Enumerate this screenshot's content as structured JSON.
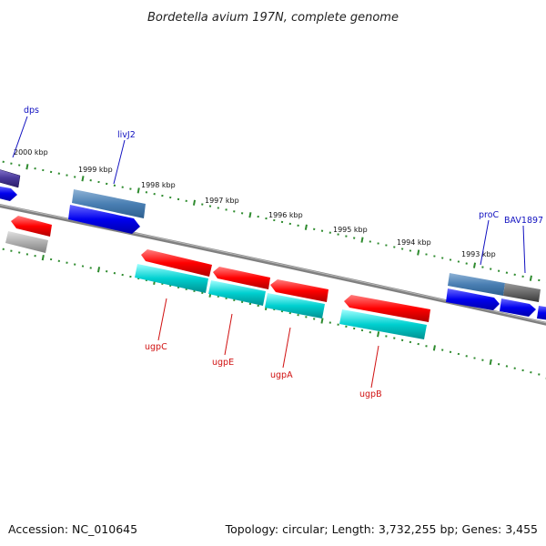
{
  "title": "Bordetella avium 197N, complete genome",
  "footer": {
    "accession": "Accession: NC_010645",
    "topology": "Topology: circular; Length: 3,732,255 bp; Genes: 3,455"
  },
  "colors": {
    "backbone": "#808080",
    "tick": "#2e8b2e",
    "forward_cds": "#0000ee",
    "reverse_cds": "#ff0000",
    "rna": "#00d0d0",
    "other": "#b0b0b0",
    "label_forward": "#1010c0",
    "label_reverse": "#d01010"
  },
  "scale_labels": [
    "2000 kbp",
    "1999 kbp",
    "1998 kbp",
    "1997 kbp",
    "1996 kbp",
    "1995 kbp",
    "1994 kbp",
    "1993 kbp"
  ],
  "gene_labels": {
    "forward": [
      "dps",
      "livJ2",
      "proC",
      "BAV1897"
    ],
    "reverse": [
      "ugpC",
      "ugpE",
      "ugpA",
      "ugpB"
    ]
  }
}
